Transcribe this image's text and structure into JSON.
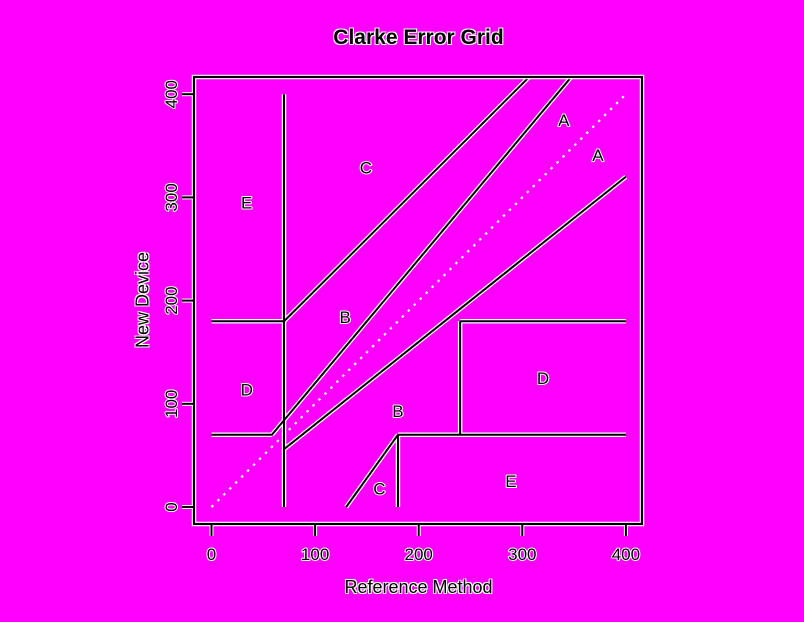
{
  "colors": {
    "background": "#ff00ff",
    "line": "#000000",
    "identity_line": "#ffffff",
    "text": "#000000",
    "text_halo": "#ffffff"
  },
  "chart_data": {
    "type": "line",
    "title": "Clarke Error Grid",
    "xlabel": "Reference Method",
    "ylabel": "New Device",
    "xlim": [
      0,
      400
    ],
    "ylim": [
      0,
      400
    ],
    "x_ticks": [
      0,
      100,
      200,
      300,
      400
    ],
    "y_ticks": [
      0,
      100,
      200,
      300,
      400
    ],
    "grid": false,
    "legend": false,
    "points": [],
    "identity_line": {
      "style": "dotted",
      "color": "#ffffff",
      "from": [
        0,
        0
      ],
      "to": [
        400,
        400
      ]
    },
    "zone_boundaries": [
      {
        "x1": 0,
        "y1": 70,
        "x2": 58.3,
        "y2": 70
      },
      {
        "x1": 58.3,
        "y1": 70,
        "x2": 347.2,
        "y2": 416.6
      },
      {
        "x1": 70,
        "y1": 0,
        "x2": 70,
        "y2": 400
      },
      {
        "x1": 0,
        "y1": 180,
        "x2": 70,
        "y2": 180
      },
      {
        "x1": 70,
        "y1": 180,
        "x2": 306.6,
        "y2": 416.6
      },
      {
        "x1": 70,
        "y1": 56,
        "x2": 400,
        "y2": 320
      },
      {
        "x1": 130,
        "y1": 0,
        "x2": 180,
        "y2": 70
      },
      {
        "x1": 180,
        "y1": 0,
        "x2": 180,
        "y2": 70
      },
      {
        "x1": 180,
        "y1": 70,
        "x2": 400,
        "y2": 70
      },
      {
        "x1": 240,
        "y1": 70,
        "x2": 240,
        "y2": 180
      },
      {
        "x1": 240,
        "y1": 180,
        "x2": 400,
        "y2": 180
      }
    ],
    "zone_labels": [
      {
        "text": "A",
        "x": 340,
        "y": 375
      },
      {
        "text": "A",
        "x": 373,
        "y": 341
      },
      {
        "text": "B",
        "x": 129,
        "y": 184
      },
      {
        "text": "B",
        "x": 180,
        "y": 93
      },
      {
        "text": "C",
        "x": 149,
        "y": 329
      },
      {
        "text": "C",
        "x": 162,
        "y": 18
      },
      {
        "text": "D",
        "x": 34,
        "y": 114
      },
      {
        "text": "D",
        "x": 320,
        "y": 125
      },
      {
        "text": "E",
        "x": 34,
        "y": 295
      },
      {
        "text": "E",
        "x": 289,
        "y": 25
      }
    ]
  }
}
